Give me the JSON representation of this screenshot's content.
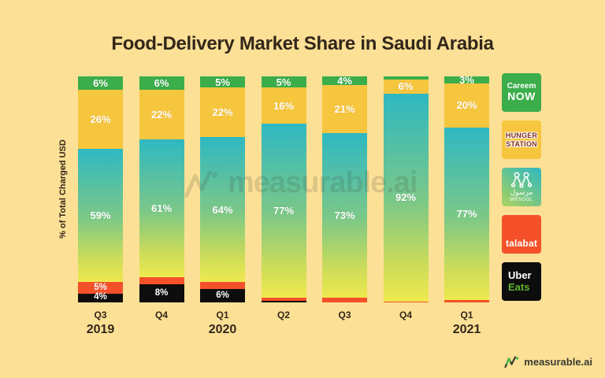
{
  "title": "Food-Delivery Market Share in Saudi Arabia",
  "y_axis_label": "% of Total Charged USD",
  "watermark_text": "measurable.ai",
  "footer": {
    "brand": "measurable.ai"
  },
  "colors": {
    "bg": "#FCE095",
    "ink": "#33261A",
    "careem": "#3BAD4A",
    "hunger": "#F7C63F",
    "mrsool_top": "#2EB8C2",
    "mrsool_mid": "#7CC887",
    "mrsool_end": "#EFE94E",
    "talabat": "#F4512B",
    "uber": "#0D0D0D",
    "uber_eats_green": "#5FB330",
    "hunger_text": "#7B2B21"
  },
  "chart_data": {
    "type": "bar",
    "stacked": true,
    "unit": "% of total charged USD",
    "title": "Food-Delivery Market Share in Saudi Arabia",
    "ylabel": "% of Total Charged USD",
    "ylim": [
      0,
      100
    ],
    "grid": false,
    "legend_position": "right",
    "categories": [
      "Q3 2019",
      "Q4 2019",
      "Q1 2020",
      "Q2 2020",
      "Q3 2020",
      "Q4 2020",
      "Q1 2021"
    ],
    "x_tick_labels": [
      "Q3",
      "Q4",
      "Q1",
      "Q2",
      "Q3",
      "Q4",
      "Q1"
    ],
    "year_markers": [
      {
        "index": 0,
        "year": "2019"
      },
      {
        "index": 2,
        "year": "2020"
      },
      {
        "index": 6,
        "year": "2021"
      }
    ],
    "series": [
      {
        "key": "careem",
        "name": "Careem NOW",
        "values": [
          6,
          6,
          5,
          5,
          4,
          1.5,
          3
        ],
        "labels": [
          "6%",
          "6%",
          "5%",
          "5%",
          "4%",
          "",
          "3%"
        ]
      },
      {
        "key": "hunger",
        "name": "HungerStation",
        "values": [
          26,
          22,
          22,
          16,
          21,
          6,
          20
        ],
        "labels": [
          "26%",
          "22%",
          "22%",
          "16%",
          "21%",
          "6%",
          "20%"
        ]
      },
      {
        "key": "mrsool",
        "name": "Mrsool",
        "values": [
          59,
          61,
          64,
          77,
          73,
          92,
          77
        ],
        "labels": [
          "59%",
          "61%",
          "64%",
          "77%",
          "73%",
          "92%",
          "77%"
        ]
      },
      {
        "key": "talabat",
        "name": "talabat",
        "values": [
          5,
          3,
          3,
          1.2,
          2,
          0.5,
          1
        ],
        "labels": [
          "5%",
          "",
          "",
          "",
          "",
          "",
          ""
        ]
      },
      {
        "key": "uber",
        "name": "Uber Eats",
        "values": [
          4,
          8,
          6,
          0.8,
          0,
          0,
          0
        ],
        "labels": [
          "4%",
          "8%",
          "6%",
          "",
          "",
          "",
          ""
        ]
      }
    ]
  },
  "legend": {
    "items": [
      {
        "name": "Careem NOW",
        "line1": "Careem",
        "line2": "NOW"
      },
      {
        "name": "HungerStation",
        "line1": "HUNGER",
        "line2": "STATION"
      },
      {
        "name": "Mrsool",
        "arabic": "مرسول",
        "label": "MRSOOL"
      },
      {
        "name": "talabat",
        "label": "talabat"
      },
      {
        "name": "Uber Eats",
        "line1": "Uber",
        "line2": "Eats"
      }
    ]
  }
}
